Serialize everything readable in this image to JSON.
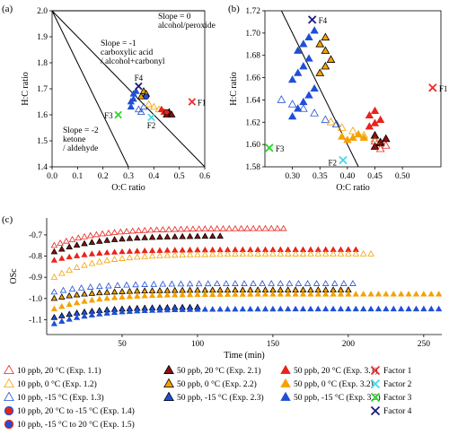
{
  "panel_a": {
    "panel_label": "(a)",
    "annotations": {
      "slope0_line1": "Slope = 0",
      "slope0_line2": "alcohol/peroxide",
      "slope1_line1": "Slope = -1",
      "slope1_line2": "carboxylic acid",
      "slope1_line3": "/ alcohol+carbonyl",
      "slope2_line1": "Slope = -2",
      "slope2_line2": "ketone",
      "slope2_line3": "/ aldehyde"
    }
  },
  "panel_b": {
    "panel_label": "(b)"
  },
  "panel_c": {
    "panel_label": "(c)"
  },
  "colors": {
    "red": "#e8231c",
    "darkred": "#8b1010",
    "orange": "#f5a100",
    "blue": "#1f4fd6",
    "f_red": "#ef2b2b",
    "f_cyan": "#43d9e6",
    "f_green": "#2bd62b",
    "f_navy": "#1b1b7a"
  },
  "legend": [
    {
      "label": "10 ppb, 20 °C (Exp. 1.1)",
      "marker": "tri-open",
      "color": "#e8231c"
    },
    {
      "label": "10 ppb, 0 °C (Exp. 1.2)",
      "marker": "tri-open",
      "color": "#f5a100"
    },
    {
      "label": "10 ppb, -15 °C (Exp. 1.3)",
      "marker": "tri-open",
      "color": "#1f4fd6"
    },
    {
      "label": "10 ppb, 20 °C to -15 °C (Exp. 1.4)",
      "marker": "circle-red",
      "color": "#e8231c"
    },
    {
      "label": "10 ppb, -15 °C to 20 °C (Exp. 1.5)",
      "marker": "circle-blue",
      "color": "#1f4fd6"
    },
    {
      "label": "50 ppb, 20 °C (Exp. 2.1)",
      "marker": "tri-edge",
      "color": "#8b1010"
    },
    {
      "label": "50 ppb, 0 °C (Exp. 2.2)",
      "marker": "tri-edge",
      "color": "#f5a100"
    },
    {
      "label": "50 ppb, -15 °C (Exp. 2.3)",
      "marker": "tri-edge",
      "color": "#1f4fd6"
    },
    {
      "label": "50 ppb, 20 °C (Exp. 3.1)",
      "marker": "tri-fill",
      "color": "#e8231c"
    },
    {
      "label": "50 ppb, 0 °C (Exp. 3.2)",
      "marker": "tri-fill",
      "color": "#f5a100"
    },
    {
      "label": "50 ppb, -15 °C (Exp. 3.3)",
      "marker": "tri-fill",
      "color": "#1f4fd6"
    },
    {
      "label": "Factor 1",
      "marker": "x",
      "color": "#ef2b2b"
    },
    {
      "label": "Factor 2",
      "marker": "x",
      "color": "#43d9e6"
    },
    {
      "label": "Factor 3",
      "marker": "x",
      "color": "#2bd62b"
    },
    {
      "label": "Factor 4",
      "marker": "x",
      "color": "#1b1b7a"
    }
  ],
  "chart_data": [
    {
      "id": "a",
      "type": "scatter",
      "title": "",
      "xlabel": "O:C ratio",
      "ylabel": "H:C ratio",
      "xlim": [
        0.0,
        0.6
      ],
      "ylim": [
        1.4,
        2.0
      ],
      "xticks": [
        "0.0",
        "0.1",
        "0.2",
        "0.3",
        "0.4",
        "0.5",
        "0.6"
      ],
      "yticks": [
        "1.4",
        "1.5",
        "1.6",
        "1.7",
        "1.8",
        "1.9",
        "2.0"
      ],
      "reference_lines": [
        {
          "name": "Slope = 0",
          "x": [
            0,
            0.6
          ],
          "y": [
            2.0,
            2.0
          ]
        },
        {
          "name": "Slope = -1",
          "x": [
            0,
            0.6
          ],
          "y": [
            2.0,
            1.4
          ]
        },
        {
          "name": "Slope = -2",
          "x": [
            0,
            0.3
          ],
          "y": [
            2.0,
            1.4
          ]
        }
      ],
      "factors": [
        {
          "name": "F1",
          "x": 0.55,
          "y": 1.65,
          "color": "#ef2b2b"
        },
        {
          "name": "F2",
          "x": 0.39,
          "y": 1.59,
          "color": "#43d9e6"
        },
        {
          "name": "F3",
          "x": 0.26,
          "y": 1.6,
          "color": "#2bd62b"
        },
        {
          "name": "F4",
          "x": 0.34,
          "y": 1.71,
          "color": "#1b1b7a"
        }
      ],
      "clusters": [
        {
          "color": "#1f4fd6",
          "marker": "tri-fill",
          "x": [
            0.31,
            0.32,
            0.33,
            0.32,
            0.31
          ],
          "y": [
            1.63,
            1.66,
            1.69,
            1.68,
            1.65
          ]
        },
        {
          "color": "#1f4fd6",
          "marker": "tri-open",
          "x": [
            0.34,
            0.36,
            0.35
          ],
          "y": [
            1.62,
            1.63,
            1.61
          ]
        },
        {
          "color": "#f5a100",
          "marker": "tri-edge",
          "x": [
            0.35,
            0.36,
            0.37
          ],
          "y": [
            1.67,
            1.69,
            1.68
          ]
        },
        {
          "color": "#f5a100",
          "marker": "tri-open",
          "x": [
            0.38,
            0.4,
            0.42
          ],
          "y": [
            1.64,
            1.63,
            1.62
          ]
        },
        {
          "color": "#e8231c",
          "marker": "tri-fill",
          "x": [
            0.43,
            0.44
          ],
          "y": [
            1.62,
            1.61
          ]
        },
        {
          "color": "#8b1010",
          "marker": "tri-edge",
          "x": [
            0.45,
            0.46,
            0.47
          ],
          "y": [
            1.6,
            1.61,
            1.6
          ]
        }
      ],
      "circles": [
        {
          "x": 0.45,
          "y": 1.61,
          "color": "#e8231c"
        },
        {
          "x": 0.37,
          "y": 1.67,
          "color": "#1f4fd6"
        }
      ]
    },
    {
      "id": "b",
      "type": "scatter",
      "title": "",
      "xlabel": "O:C ratio",
      "ylabel": "H:C ratio",
      "xlim": [
        0.25,
        0.57
      ],
      "ylim": [
        1.58,
        1.72
      ],
      "xticks": [
        "0.30",
        "0.35",
        "0.40",
        "0.45",
        "0.50"
      ],
      "yticks": [
        "1.58",
        "1.60",
        "1.62",
        "1.64",
        "1.66",
        "1.68",
        "1.70",
        "1.72"
      ],
      "reference_lines": [
        {
          "name": "Slope = -1",
          "x": [
            0.28,
            0.42
          ],
          "y": [
            1.72,
            1.58
          ]
        }
      ],
      "factors": [
        {
          "name": "F1",
          "x": 0.555,
          "y": 1.651,
          "color": "#ef2b2b"
        },
        {
          "name": "F2",
          "x": 0.392,
          "y": 1.586,
          "color": "#43d9e6"
        },
        {
          "name": "F3",
          "x": 0.258,
          "y": 1.597,
          "color": "#2bd62b"
        },
        {
          "name": "F4",
          "x": 0.336,
          "y": 1.712,
          "color": "#1b1b7a"
        }
      ],
      "clusters": [
        {
          "color": "#1f4fd6",
          "marker": "tri-fill",
          "x": [
            0.3,
            0.31,
            0.32,
            0.33,
            0.34,
            0.3,
            0.31,
            0.32,
            0.33,
            0.31,
            0.32,
            0.33,
            0.34
          ],
          "y": [
            1.625,
            1.632,
            1.638,
            1.644,
            1.65,
            1.658,
            1.664,
            1.67,
            1.677,
            1.684,
            1.69,
            1.696,
            1.702
          ]
        },
        {
          "color": "#1f4fd6",
          "marker": "tri-open",
          "x": [
            0.28,
            0.3,
            0.32,
            0.34,
            0.36,
            0.38
          ],
          "y": [
            1.64,
            1.636,
            1.632,
            1.628,
            1.622,
            1.618
          ]
        },
        {
          "color": "#f5a100",
          "marker": "tri-edge",
          "x": [
            0.35,
            0.36,
            0.37,
            0.36,
            0.35,
            0.36
          ],
          "y": [
            1.664,
            1.67,
            1.676,
            1.684,
            1.69,
            1.696
          ]
        },
        {
          "color": "#f5a100",
          "marker": "tri-fill",
          "x": [
            0.39,
            0.4,
            0.41,
            0.42,
            0.43
          ],
          "y": [
            1.607,
            1.604,
            1.606,
            1.609,
            1.606
          ]
        },
        {
          "color": "#f5a100",
          "marker": "tri-open",
          "x": [
            0.37,
            0.39,
            0.41,
            0.43,
            0.45
          ],
          "y": [
            1.62,
            1.615,
            1.612,
            1.608,
            1.605
          ]
        },
        {
          "color": "#e8231c",
          "marker": "tri-fill",
          "x": [
            0.44,
            0.45,
            0.46,
            0.44,
            0.45
          ],
          "y": [
            1.616,
            1.619,
            1.622,
            1.626,
            1.63
          ]
        },
        {
          "color": "#8b1010",
          "marker": "tri-edge",
          "x": [
            0.45,
            0.46,
            0.47,
            0.45,
            0.46
          ],
          "y": [
            1.598,
            1.601,
            1.605,
            1.608,
            1.602
          ]
        },
        {
          "color": "#e8231c",
          "marker": "tri-open",
          "x": [
            0.46,
            0.47,
            0.45
          ],
          "y": [
            1.596,
            1.599,
            1.603
          ]
        }
      ]
    },
    {
      "id": "c",
      "type": "scatter",
      "title": "",
      "xlabel": "Time (min)",
      "ylabel": "OSc",
      "xlim": [
        0,
        262
      ],
      "ylim": [
        -1.17,
        -0.62
      ],
      "xticks": [
        "50",
        "100",
        "150",
        "200",
        "250"
      ],
      "yticks": [
        "-0.7",
        "-0.8",
        "-0.9",
        "-1.0",
        "-1.1"
      ],
      "series": [
        {
          "name": "10 ppb, 20 °C (Exp. 1.1)",
          "marker": "tri-open",
          "color": "#e8231c",
          "x_start": 5,
          "x_end": 160,
          "step": 4,
          "y_start": -0.75,
          "y_end": -0.67
        },
        {
          "name": "50 ppb, 20 °C (Exp. 2.1)",
          "marker": "tri-edge",
          "color": "#8b1010",
          "x_start": 5,
          "x_end": 115,
          "step": 5,
          "y_start": -0.78,
          "y_end": -0.705
        },
        {
          "name": "50 ppb, 20 °C (Exp. 3.1)",
          "marker": "tri-fill",
          "color": "#e8231c",
          "x_start": 5,
          "x_end": 205,
          "step": 5,
          "y_start": -0.82,
          "y_end": -0.77
        },
        {
          "name": "10 ppb, 0 °C (Exp. 1.2)",
          "marker": "tri-open",
          "color": "#f5a100",
          "x_start": 5,
          "x_end": 215,
          "step": 5,
          "y_start": -0.9,
          "y_end": -0.79
        },
        {
          "name": "10 ppb, -15 °C (Exp. 1.3)",
          "marker": "tri-open",
          "color": "#1f4fd6",
          "x_start": 5,
          "x_end": 205,
          "step": 6,
          "y_start": -0.97,
          "y_end": -0.93
        },
        {
          "name": "50 ppb, 0 °C (Exp. 2.2)",
          "marker": "tri-edge",
          "color": "#f5a100",
          "x_start": 5,
          "x_end": 200,
          "step": 5,
          "y_start": -1.0,
          "y_end": -0.96
        },
        {
          "name": "50 ppb, 0 °C (Exp. 3.2)",
          "marker": "tri-fill",
          "color": "#f5a100",
          "x_start": 5,
          "x_end": 262,
          "step": 5,
          "y_start": -1.05,
          "y_end": -0.98
        },
        {
          "name": "50 ppb, -15 °C (Exp. 2.3)",
          "marker": "tri-edge",
          "color": "#1f4fd6",
          "x_start": 5,
          "x_end": 100,
          "step": 5,
          "y_start": -1.09,
          "y_end": -1.04
        },
        {
          "name": "50 ppb, -15 °C (Exp. 3.3)",
          "marker": "tri-fill",
          "color": "#1f4fd6",
          "x_start": 5,
          "x_end": 262,
          "step": 5,
          "y_start": -1.12,
          "y_end": -1.05
        }
      ]
    }
  ]
}
